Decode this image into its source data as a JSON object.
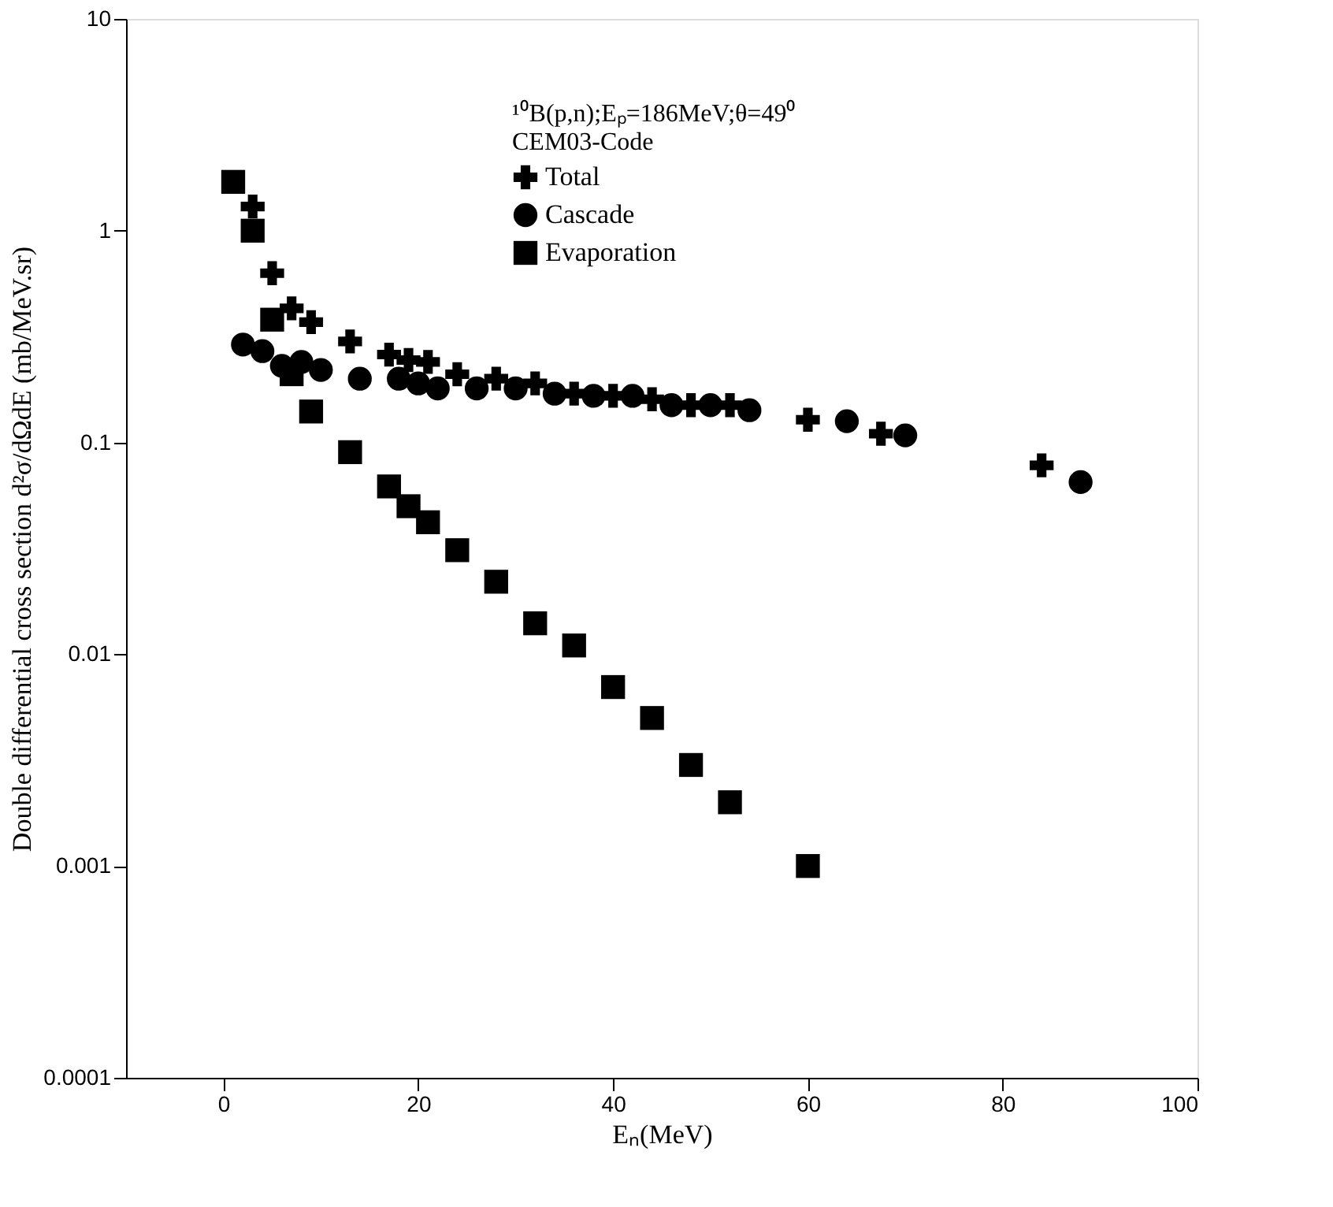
{
  "chart_data": {
    "type": "scatter",
    "xlabel": "Eₙ(MeV)",
    "ylabel": "Double differential cross section d²σ/dΩdE (mb/MeV.sr)",
    "annotations": [
      "¹⁰B(p,n);Eₚ=186MeV;θ=49⁰",
      "CEM03-Code"
    ],
    "log": "y",
    "xlim": [
      -10,
      100
    ],
    "xticks": [
      0,
      20,
      40,
      60,
      80,
      100
    ],
    "ylim": [
      0.0001,
      10
    ],
    "yticks": [
      0.0001,
      0.001,
      0.01,
      0.1,
      1,
      10
    ],
    "grid": false,
    "legend": "top",
    "series": [
      {
        "name": "Total",
        "color": "#000000",
        "marker": "cross",
        "x": [
          3,
          5,
          7,
          9,
          13,
          17,
          19,
          21,
          24,
          28,
          32,
          36,
          40,
          44,
          48,
          52,
          60,
          67.5,
          84
        ],
        "values": [
          1.3,
          0.63,
          0.43,
          0.37,
          0.3,
          0.26,
          0.245,
          0.24,
          0.21,
          0.2,
          0.19,
          0.17,
          0.166,
          0.16,
          0.15,
          0.15,
          0.128,
          0.11,
          0.078
        ]
      },
      {
        "name": "Cascade",
        "color": "#000000",
        "marker": "circle",
        "x": [
          2,
          4,
          6,
          8,
          10,
          14,
          18,
          20,
          22,
          26,
          30,
          34,
          38,
          42,
          46,
          50,
          54,
          64,
          70,
          88
        ],
        "values": [
          0.29,
          0.27,
          0.23,
          0.24,
          0.22,
          0.2,
          0.2,
          0.19,
          0.18,
          0.18,
          0.18,
          0.17,
          0.166,
          0.166,
          0.15,
          0.15,
          0.142,
          0.126,
          0.108,
          0.065
        ]
      },
      {
        "name": "Evaporation",
        "color": "#000000",
        "marker": "square",
        "x": [
          1,
          3,
          5,
          7,
          9,
          13,
          17,
          19,
          21,
          24,
          28,
          32,
          36,
          40,
          44,
          48,
          52,
          60
        ],
        "values": [
          1.7,
          1.0,
          0.38,
          0.21,
          0.14,
          0.09,
          0.062,
          0.05,
          0.042,
          0.031,
          0.022,
          0.014,
          0.011,
          0.007,
          0.005,
          0.003,
          0.002,
          0.001
        ]
      }
    ]
  }
}
